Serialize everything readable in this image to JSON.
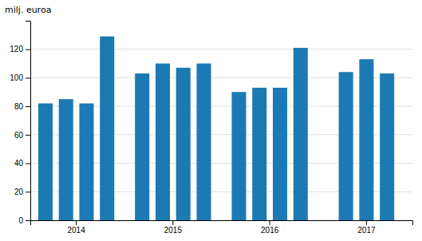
{
  "chart_data": {
    "type": "bar",
    "ylabel": "milj. euroa",
    "categories": [
      "2014",
      "2015",
      "2016",
      "2017"
    ],
    "series": [
      {
        "color": "#1b7ab3",
        "values": [
          82,
          103,
          90,
          104
        ]
      },
      {
        "color": "#1b7ab3",
        "values": [
          85,
          110,
          93,
          113
        ]
      },
      {
        "color": "#1b7ab3",
        "values": [
          82,
          107,
          93,
          103
        ]
      },
      {
        "color": "#1b7ab3",
        "values": [
          129,
          110,
          121,
          null
        ]
      }
    ],
    "ylim": [
      0,
      140
    ],
    "yticks": [
      0,
      20,
      40,
      60,
      80,
      100,
      120
    ],
    "grid": true
  }
}
